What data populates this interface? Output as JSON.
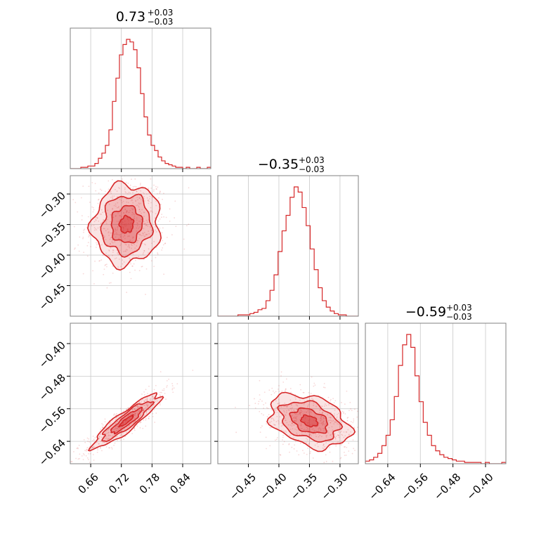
{
  "colors": {
    "accent": "#d62728",
    "grid": "#c8c8c8",
    "frame": "#808080"
  },
  "chart_data": {
    "type": "corner",
    "title_templates": [
      {
        "value": "0.73",
        "plus": "+0.03",
        "minus": "−0.03"
      },
      {
        "value": "−0.35",
        "plus": "+0.03",
        "minus": "−0.03"
      },
      {
        "value": "−0.59",
        "plus": "+0.03",
        "minus": "−0.03"
      }
    ],
    "params": [
      {
        "range": [
          0.62,
          0.895
        ],
        "ticks": [
          0.66,
          0.72,
          0.78,
          0.84
        ],
        "tick_labels": [
          "0.66",
          "0.72",
          "0.78",
          "0.84"
        ],
        "median": 0.73,
        "sigma": 0.03
      },
      {
        "range": [
          -0.5,
          -0.27
        ],
        "ticks": [
          -0.45,
          -0.4,
          -0.35,
          -0.3
        ],
        "tick_labels": [
          "−0.45",
          "−0.40",
          "−0.35",
          "−0.30"
        ],
        "median": -0.35,
        "sigma": 0.03
      },
      {
        "range": [
          -0.695,
          -0.35
        ],
        "ticks": [
          -0.64,
          -0.56,
          -0.48,
          -0.4
        ],
        "tick_labels": [
          "−0.64",
          "−0.56",
          "−0.48",
          "−0.40"
        ],
        "median": -0.59,
        "sigma": 0.03
      }
    ],
    "histograms": [
      {
        "bins": [
          0.62,
          0.895
        ],
        "counts": [
          0,
          0,
          0,
          1,
          1,
          2,
          2,
          4,
          8,
          12,
          18,
          30,
          52,
          70,
          88,
          96,
          100,
          98,
          92,
          78,
          58,
          40,
          26,
          18,
          14,
          9,
          6,
          4,
          3,
          2,
          1,
          1,
          0,
          1,
          0,
          0,
          1,
          0,
          0,
          1
        ]
      },
      {
        "bins": [
          -0.5,
          -0.27
        ],
        "counts": [
          0,
          0,
          0,
          0,
          0,
          1,
          1,
          1,
          2,
          3,
          5,
          6,
          12,
          20,
          32,
          50,
          66,
          78,
          92,
          100,
          96,
          84,
          70,
          52,
          36,
          22,
          12,
          7,
          4,
          2,
          1,
          1,
          0,
          0,
          0
        ]
      },
      {
        "bins": [
          -0.695,
          -0.35
        ],
        "counts": [
          2,
          3,
          5,
          8,
          14,
          22,
          34,
          52,
          76,
          92,
          100,
          90,
          68,
          48,
          32,
          22,
          14,
          10,
          7,
          5,
          4,
          3,
          2,
          2,
          1,
          1,
          1,
          1,
          0,
          1,
          0,
          0,
          0,
          1
        ]
      }
    ],
    "correlations": {
      "1_0": 0.05,
      "2_0": 0.9,
      "2_1": -0.35
    },
    "grid": true
  }
}
